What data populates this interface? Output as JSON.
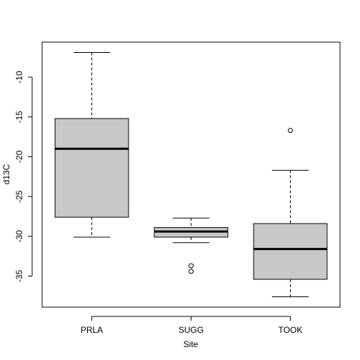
{
  "chart_data": {
    "type": "boxplot",
    "xlabel": "Site",
    "ylabel": "d13C",
    "ylim": [
      -38.9,
      -5.6
    ],
    "yticks": [
      -10,
      -15,
      -20,
      -25,
      -30,
      -35
    ],
    "ytick_labels": [
      "-10",
      "-15",
      "-20",
      "-25",
      "-30",
      "-35"
    ],
    "categories": [
      "PRLA",
      "SUGG",
      "TOOK"
    ],
    "boxes": [
      {
        "category": "PRLA",
        "whisker_low": -30.1,
        "q1": -27.6,
        "median": -19.0,
        "q3": -15.2,
        "whisker_high": -6.9,
        "outliers": []
      },
      {
        "category": "SUGG",
        "whisker_low": -30.8,
        "q1": -30.1,
        "median": -29.4,
        "q3": -28.9,
        "whisker_high": -27.7,
        "outliers": [
          -33.7,
          -34.4
        ]
      },
      {
        "category": "TOOK",
        "whisker_low": -37.6,
        "q1": -35.4,
        "median": -31.6,
        "q3": -28.4,
        "whisker_high": -21.7,
        "outliers": [
          -16.7
        ]
      }
    ],
    "box_fill": "#c8c8c8",
    "grid": false
  }
}
